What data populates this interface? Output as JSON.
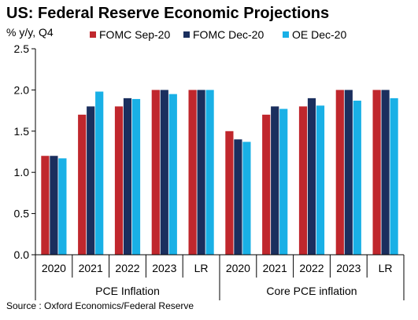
{
  "chart_data": {
    "type": "bar",
    "title": "US: Federal Reserve Economic Projections",
    "ylabel": "% y/y, Q4",
    "ylim": [
      0,
      2.5
    ],
    "yticks": [
      "0.0",
      "0.5",
      "1.0",
      "1.5",
      "2.0",
      "2.5"
    ],
    "groups": [
      {
        "label": "PCE Inflation",
        "categories": [
          "2020",
          "2021",
          "2022",
          "2023",
          "LR"
        ]
      },
      {
        "label": "Core PCE inflation",
        "categories": [
          "2020",
          "2021",
          "2022",
          "2023",
          "LR"
        ]
      }
    ],
    "series": [
      {
        "name": "FOMC Sep-20",
        "color": "#c0272d",
        "values": [
          1.2,
          1.7,
          1.8,
          2.0,
          2.0,
          1.5,
          1.7,
          1.8,
          2.0,
          2.0
        ]
      },
      {
        "name": "FOMC Dec-20",
        "color": "#1b2f5e",
        "values": [
          1.2,
          1.8,
          1.9,
          2.0,
          2.0,
          1.4,
          1.8,
          1.9,
          2.0,
          2.0
        ]
      },
      {
        "name": "OE Dec-20",
        "color": "#19b0e6",
        "values": [
          1.17,
          1.98,
          1.89,
          1.95,
          2.0,
          1.37,
          1.77,
          1.81,
          1.87,
          1.9
        ]
      }
    ],
    "legend_position": "top-right",
    "grid": false,
    "source": "Source : Oxford Economics/Federal Reserve"
  }
}
